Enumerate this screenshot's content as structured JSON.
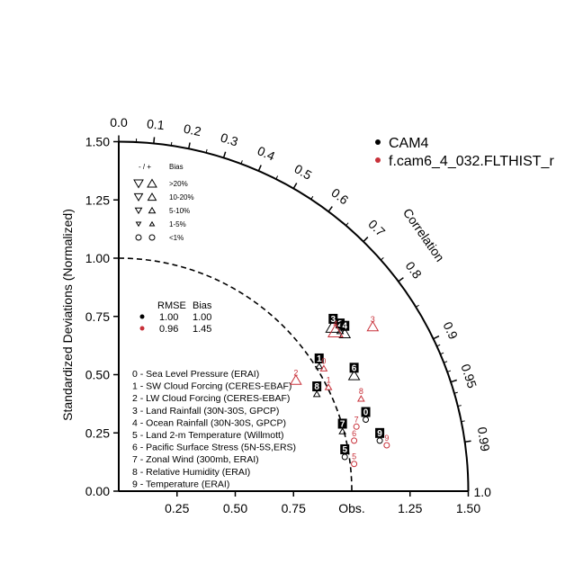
{
  "chart_data": {
    "type": "scatter",
    "subtype": "taylor-diagram",
    "ylabel": "Standardized Deviations (Normalized)",
    "xlabel": "",
    "correlation_label": "Correlation",
    "obs_label": "Obs.",
    "xlim": [
      0,
      1.5
    ],
    "ylim": [
      0,
      1.5
    ],
    "x_ticks": [
      "0.25",
      "0.50",
      "0.75",
      "1.25",
      "1.50"
    ],
    "y_ticks": [
      "0.00",
      "0.25",
      "0.50",
      "0.75",
      "1.00",
      "1.25",
      "1.50"
    ],
    "right_axis_label": "1.0",
    "correlation_ticks": [
      "0.0",
      "0.1",
      "0.2",
      "0.3",
      "0.4",
      "0.5",
      "0.6",
      "0.7",
      "0.8",
      "0.9",
      "0.95",
      "0.99"
    ],
    "reference_arc_sd": 1.0,
    "series": [
      {
        "name": "CAM4",
        "color": "#000000",
        "rmse": "1.00",
        "bias": "1.00",
        "points": [
          {
            "id": "0",
            "x": 1.06,
            "y": 0.33,
            "bias_marker": "circle"
          },
          {
            "id": "1",
            "x": 0.86,
            "y": 0.56,
            "bias_marker": "up-small"
          },
          {
            "id": "2",
            "x": 0.95,
            "y": 0.71,
            "bias_marker": "up-small"
          },
          {
            "id": "3",
            "x": 0.92,
            "y": 0.73,
            "bias_marker": "up-large"
          },
          {
            "id": "4",
            "x": 0.97,
            "y": 0.7,
            "bias_marker": "up-medium"
          },
          {
            "id": "5",
            "x": 0.97,
            "y": 0.17,
            "bias_marker": "circle"
          },
          {
            "id": "6",
            "x": 1.01,
            "y": 0.52,
            "bias_marker": "up-medium"
          },
          {
            "id": "7",
            "x": 0.96,
            "y": 0.28,
            "bias_marker": "up-small"
          },
          {
            "id": "8",
            "x": 0.85,
            "y": 0.44,
            "bias_marker": "up-small"
          },
          {
            "id": "9",
            "x": 1.12,
            "y": 0.24,
            "bias_marker": "circle"
          }
        ]
      },
      {
        "name": "f.cam6_4_032.FLTHIST_r",
        "color": "#c8313a",
        "rmse": "0.96",
        "bias": "1.45",
        "points": [
          {
            "id": "0",
            "x": 0.88,
            "y": 0.55,
            "bias_marker": "up-small"
          },
          {
            "id": "1",
            "x": 0.9,
            "y": 0.47,
            "bias_marker": "up-small"
          },
          {
            "id": "2",
            "x": 0.76,
            "y": 0.5,
            "bias_marker": "up-medium"
          },
          {
            "id": "3",
            "x": 1.09,
            "y": 0.73,
            "bias_marker": "up-medium"
          },
          {
            "id": "4",
            "x": 0.93,
            "y": 0.71,
            "bias_marker": "up-large"
          },
          {
            "id": "5",
            "x": 1.01,
            "y": 0.14,
            "bias_marker": "circle"
          },
          {
            "id": "6",
            "x": 1.01,
            "y": 0.24,
            "bias_marker": "circle"
          },
          {
            "id": "7",
            "x": 1.02,
            "y": 0.3,
            "bias_marker": "circle"
          },
          {
            "id": "8",
            "x": 1.04,
            "y": 0.42,
            "bias_marker": "up-small"
          },
          {
            "id": "9",
            "x": 1.15,
            "y": 0.22,
            "bias_marker": "circle"
          }
        ]
      }
    ],
    "case_legend": [
      "0 - Sea Level Pressure (ERAI)",
      "1 - SW Cloud Forcing (CERES-EBAF)",
      "2 - LW Cloud Forcing (CERES-EBAF)",
      "3 - Land Rainfall (30N-30S, GPCP)",
      "4 - Ocean Rainfall (30N-30S, GPCP)",
      "5 - Land 2-m Temperature (Willmott)",
      "6 - Pacific Surface Stress (5N-5S,ERS)",
      "7 - Zonal Wind (300mb, ERAI)",
      "8 - Relative Humidity (ERAI)",
      "9 - Temperature (ERAI)"
    ],
    "bias_legend": {
      "header_sign": "- / +",
      "header_bias": "Bias",
      "rows": [
        ">20%",
        "10-20%",
        "5-10%",
        "1-5%",
        "<1%"
      ]
    },
    "rmse_header": "RMSE",
    "bias_header": "Bias"
  }
}
